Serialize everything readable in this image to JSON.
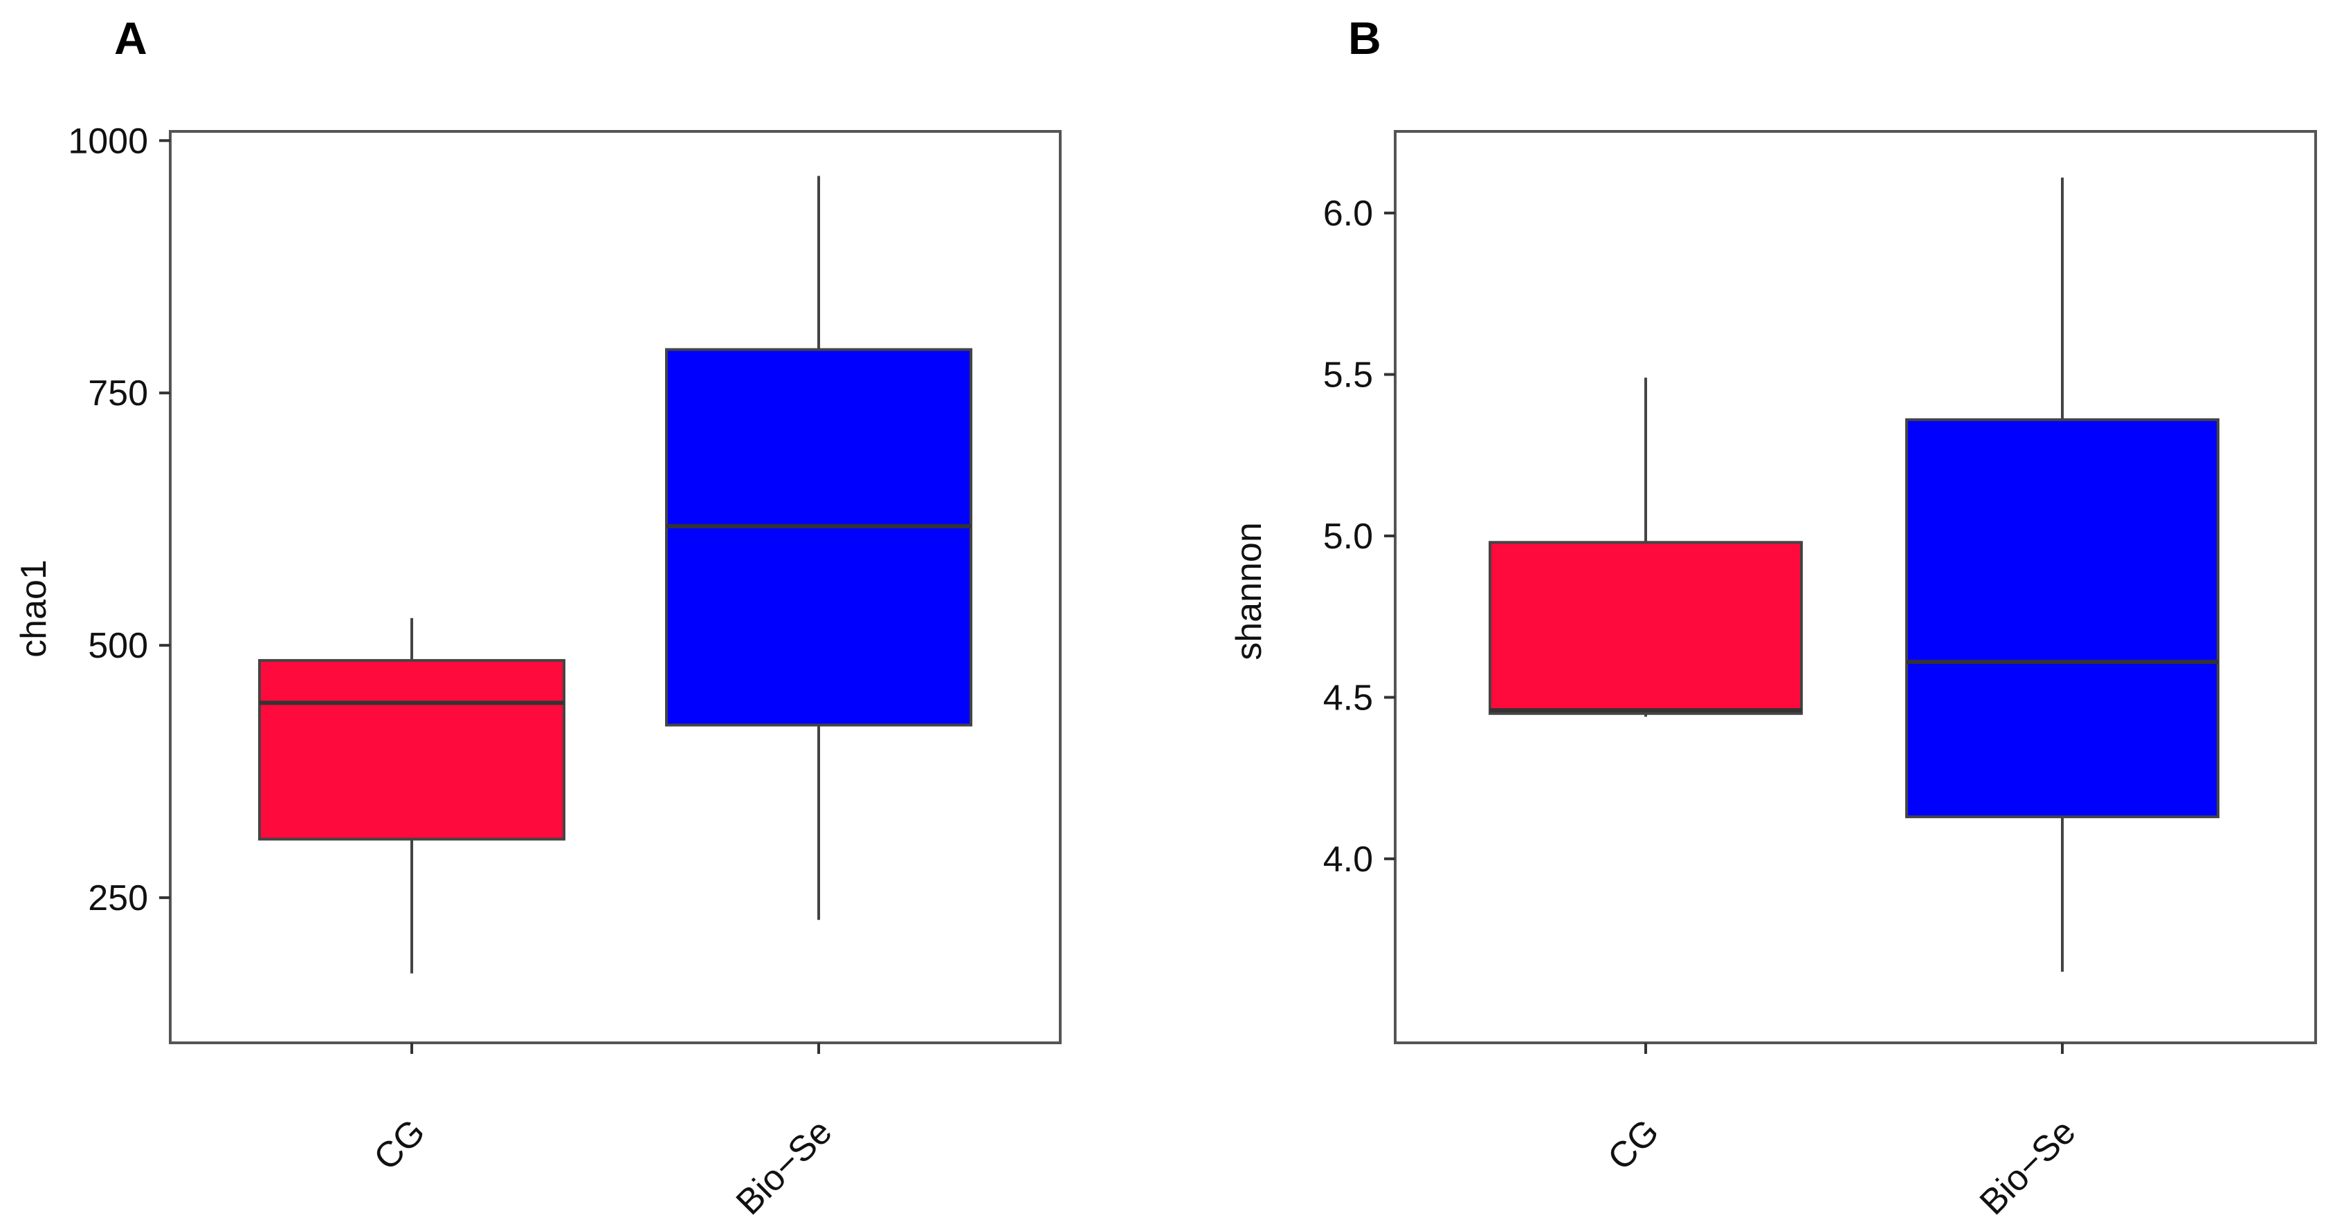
{
  "chart_data": [
    {
      "panel": "A",
      "type": "box",
      "ylabel": "chao1",
      "xlabel": "",
      "categories": [
        "CG",
        "Bio−Se"
      ],
      "ylim": [
        135,
        1005
      ],
      "yticks": [
        250,
        500,
        750,
        1000
      ],
      "yticklabels": [
        "250",
        "500",
        "750",
        "1000"
      ],
      "boxes": [
        {
          "name": "CG",
          "color": "#FF0A3C",
          "whisker_low": 175,
          "q1": 308,
          "median": 443,
          "q3": 485,
          "whisker_high": 527
        },
        {
          "name": "Bio−Se",
          "color": "#0000FF",
          "whisker_low": 228,
          "q1": 421,
          "median": 618,
          "q3": 793,
          "whisker_high": 965
        }
      ]
    },
    {
      "panel": "B",
      "type": "box",
      "ylabel": "shannon",
      "xlabel": "",
      "categories": [
        "CG",
        "Bio−Se"
      ],
      "ylim": [
        3.52,
        6.24
      ],
      "yticks": [
        4.0,
        4.5,
        5.0,
        5.5,
        6.0
      ],
      "yticklabels": [
        "4.0",
        "4.5",
        "5.0",
        "5.5",
        "6.0"
      ],
      "boxes": [
        {
          "name": "CG",
          "color": "#FF0A3C",
          "whisker_low": 4.44,
          "q1": 4.45,
          "median": 4.46,
          "q3": 4.98,
          "whisker_high": 5.49
        },
        {
          "name": "Bio−Se",
          "color": "#0000FF",
          "whisker_low": 3.65,
          "q1": 4.13,
          "median": 4.61,
          "q3": 5.36,
          "whisker_high": 6.11
        }
      ]
    }
  ]
}
